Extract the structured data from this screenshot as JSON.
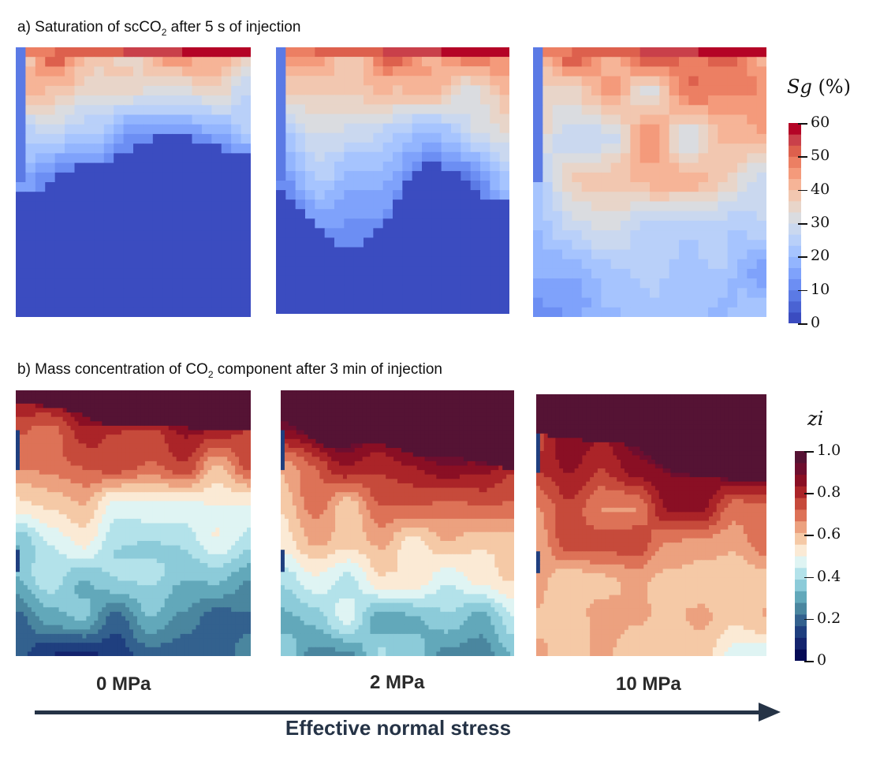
{
  "section_a": {
    "title_prefix": "a) Saturation of scCO",
    "title_sub": "2",
    "title_suffix": " after 5 s of injection"
  },
  "section_b": {
    "title_prefix": "b) Mass concentration of CO",
    "title_sub": "2",
    "title_suffix": " component after 3 min of injection"
  },
  "colorbar_a": {
    "symbol": "Sg",
    "unit": " (%)",
    "ticks": [
      "60",
      "50",
      "40",
      "30",
      "20",
      "10",
      "0"
    ],
    "colors": [
      "#3b4cc0",
      "#4a63d3",
      "#5b7ae5",
      "#6c8ef3",
      "#7fa2fb",
      "#93b5fe",
      "#a6c4fe",
      "#b9d0f9",
      "#cad8ef",
      "#dadce0",
      "#e8d5c9",
      "#f2c7b0",
      "#f6b497",
      "#f49a7b",
      "#ec7f63",
      "#dd604d",
      "#c9404a",
      "#b40426"
    ]
  },
  "colorbar_b": {
    "symbol": "zi",
    "ticks": [
      "1.0",
      "0.8",
      "0.6",
      "0.4",
      "0.2",
      "0"
    ],
    "colors": [
      "#050a55",
      "#14246e",
      "#1f3f7f",
      "#33618e",
      "#4a869f",
      "#62a8ba",
      "#8ccbd9",
      "#b3e2ea",
      "#dff4f3",
      "#fbead5",
      "#f5c9a6",
      "#eca17f",
      "#dd7257",
      "#c64a3b",
      "#ab2428",
      "#8a0f24",
      "#6e0e2f",
      "#551334"
    ]
  },
  "stress_levels": [
    "0 MPa",
    "2 MPa",
    "10 MPa"
  ],
  "x_axis_label": "Effective normal stress"
}
